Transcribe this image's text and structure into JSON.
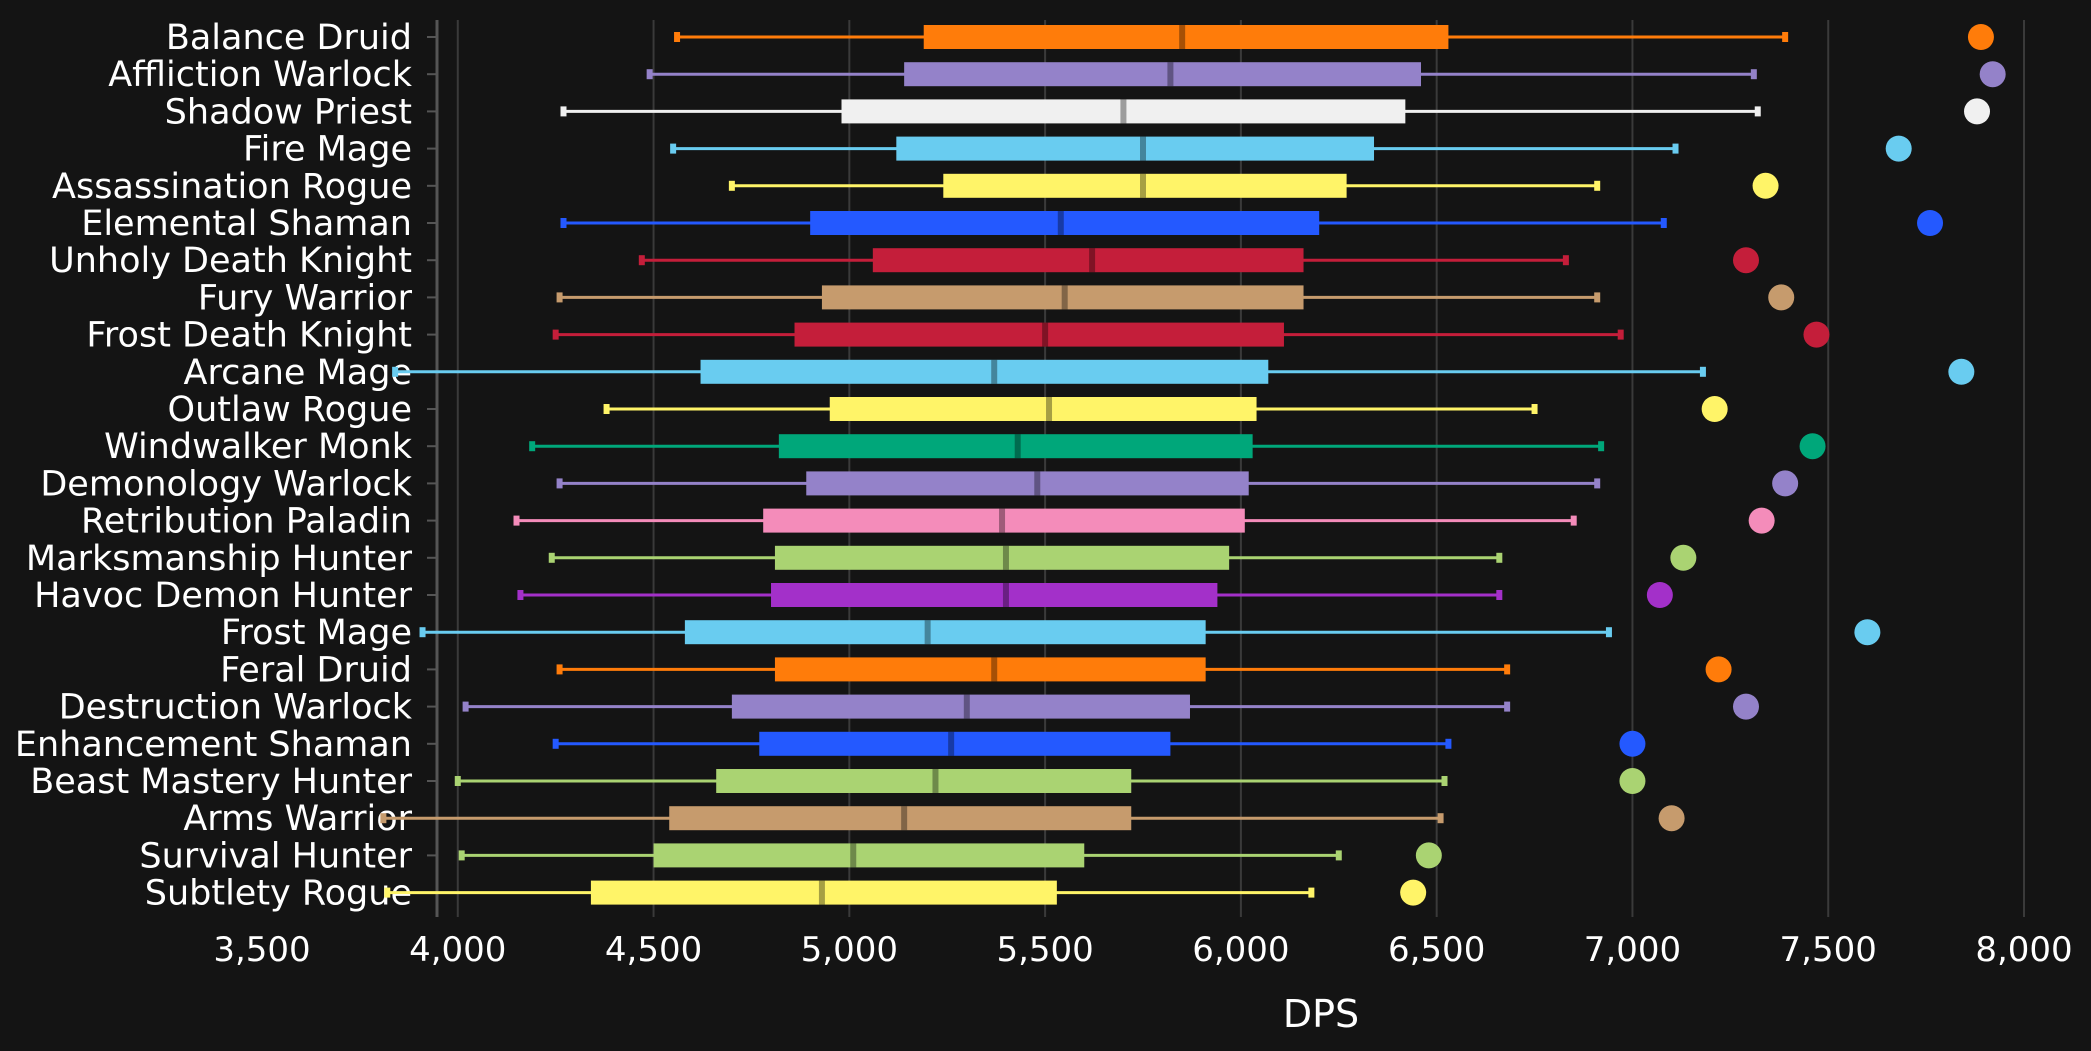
{
  "chart_data": {
    "type": "box",
    "xlabel": "DPS",
    "ylabel": "",
    "xlim": [
      3500,
      8000
    ],
    "xticks": [
      3500,
      4000,
      4500,
      5000,
      5500,
      6000,
      6500,
      7000,
      7500,
      8000
    ],
    "xtick_labels": [
      "3,500",
      "4,000",
      "4,500",
      "5,000",
      "5,500",
      "6,000",
      "6,500",
      "7,000",
      "7,500",
      "8,000"
    ],
    "grid": "vertical",
    "series": [
      {
        "name": "Balance Druid",
        "color": "#FF7C0A",
        "min": 4560,
        "q1": 5190,
        "median": 5850,
        "q3": 6530,
        "max": 7390,
        "max_point": 7890
      },
      {
        "name": "Affliction Warlock",
        "color": "#9482C9",
        "min": 4490,
        "q1": 5140,
        "median": 5820,
        "q3": 6460,
        "max": 7310,
        "max_point": 7920
      },
      {
        "name": "Shadow Priest",
        "color": "#F0F0F0",
        "min": 4270,
        "q1": 4980,
        "median": 5700,
        "q3": 6420,
        "max": 7320,
        "max_point": 7880
      },
      {
        "name": "Fire Mage",
        "color": "#69CCF0",
        "min": 4550,
        "q1": 5120,
        "median": 5750,
        "q3": 6340,
        "max": 7110,
        "max_point": 7680
      },
      {
        "name": "Assassination Rogue",
        "color": "#FFF468",
        "min": 4700,
        "q1": 5240,
        "median": 5750,
        "q3": 6270,
        "max": 6910,
        "max_point": 7340
      },
      {
        "name": "Elemental Shaman",
        "color": "#2459FF",
        "min": 4270,
        "q1": 4900,
        "median": 5540,
        "q3": 6200,
        "max": 7080,
        "max_point": 7760
      },
      {
        "name": "Unholy Death Knight",
        "color": "#C41E3A",
        "min": 4470,
        "q1": 5060,
        "median": 5620,
        "q3": 6160,
        "max": 6830,
        "max_point": 7290
      },
      {
        "name": "Fury Warrior",
        "color": "#C69B6D",
        "min": 4260,
        "q1": 4930,
        "median": 5550,
        "q3": 6160,
        "max": 6910,
        "max_point": 7380
      },
      {
        "name": "Frost Death Knight",
        "color": "#C41E3A",
        "min": 4250,
        "q1": 4860,
        "median": 5500,
        "q3": 6110,
        "max": 6970,
        "max_point": 7470
      },
      {
        "name": "Arcane Mage",
        "color": "#69CCF0",
        "min": 3840,
        "q1": 4620,
        "median": 5370,
        "q3": 6070,
        "max": 7180,
        "max_point": 7840
      },
      {
        "name": "Outlaw Rogue",
        "color": "#FFF468",
        "min": 4380,
        "q1": 4950,
        "median": 5510,
        "q3": 6040,
        "max": 6750,
        "max_point": 7210
      },
      {
        "name": "Windwalker Monk",
        "color": "#00A77A",
        "min": 4190,
        "q1": 4820,
        "median": 5430,
        "q3": 6030,
        "max": 6920,
        "max_point": 7460
      },
      {
        "name": "Demonology Warlock",
        "color": "#9482C9",
        "min": 4260,
        "q1": 4890,
        "median": 5480,
        "q3": 6020,
        "max": 6910,
        "max_point": 7390
      },
      {
        "name": "Retribution Paladin",
        "color": "#F48CBA",
        "min": 4150,
        "q1": 4780,
        "median": 5390,
        "q3": 6010,
        "max": 6850,
        "max_point": 7330
      },
      {
        "name": "Marksmanship Hunter",
        "color": "#AAD372",
        "min": 4240,
        "q1": 4810,
        "median": 5400,
        "q3": 5970,
        "max": 6660,
        "max_point": 7130
      },
      {
        "name": "Havoc Demon Hunter",
        "color": "#A330C9",
        "min": 4160,
        "q1": 4800,
        "median": 5400,
        "q3": 5940,
        "max": 6660,
        "max_point": 7070
      },
      {
        "name": "Frost Mage",
        "color": "#69CCF0",
        "min": 3910,
        "q1": 4580,
        "median": 5200,
        "q3": 5910,
        "max": 6940,
        "max_point": 7600
      },
      {
        "name": "Feral Druid",
        "color": "#FF7C0A",
        "min": 4260,
        "q1": 4810,
        "median": 5370,
        "q3": 5910,
        "max": 6680,
        "max_point": 7220
      },
      {
        "name": "Destruction Warlock",
        "color": "#9482C9",
        "min": 4020,
        "q1": 4700,
        "median": 5300,
        "q3": 5870,
        "max": 6680,
        "max_point": 7290
      },
      {
        "name": "Enhancement Shaman",
        "color": "#2459FF",
        "min": 4250,
        "q1": 4770,
        "median": 5260,
        "q3": 5820,
        "max": 6530,
        "max_point": 7000
      },
      {
        "name": "Beast Mastery Hunter",
        "color": "#AAD372",
        "min": 4000,
        "q1": 4660,
        "median": 5220,
        "q3": 5720,
        "max": 6520,
        "max_point": 7000
      },
      {
        "name": "Arms Warrior",
        "color": "#C69B6D",
        "min": 3810,
        "q1": 4540,
        "median": 5140,
        "q3": 5720,
        "max": 6510,
        "max_point": 7100
      },
      {
        "name": "Survival Hunter",
        "color": "#AAD372",
        "min": 4010,
        "q1": 4500,
        "median": 5010,
        "q3": 5600,
        "max": 6250,
        "max_point": 6480
      },
      {
        "name": "Subtlety Rogue",
        "color": "#FFF468",
        "min": 3820,
        "q1": 4340,
        "median": 4930,
        "q3": 5530,
        "max": 6180,
        "max_point": 6440
      }
    ]
  }
}
